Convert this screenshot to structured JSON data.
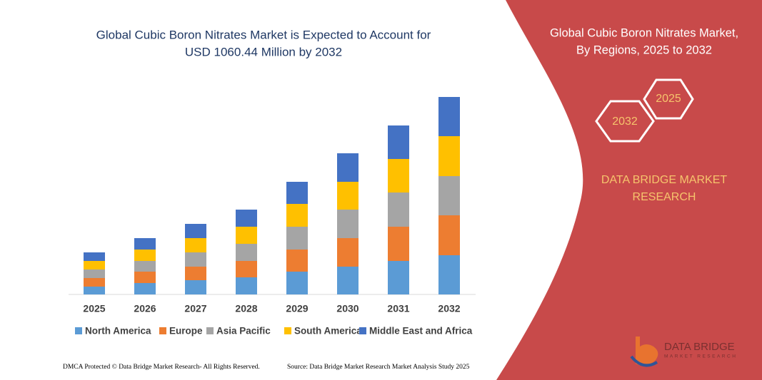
{
  "chart_data": {
    "type": "stacked_bar",
    "title_lines": [
      "Global Cubic Boron Nitrates Market is Expected to Account for",
      "USD 1060.44 Million by 2032"
    ],
    "categories": [
      "2025",
      "2026",
      "2027",
      "2028",
      "2029",
      "2030",
      "2031",
      "2032"
    ],
    "series": [
      {
        "name": "North America",
        "color": "#5b9bd5",
        "values": [
          11,
          16,
          20,
          24,
          32,
          39,
          47,
          55
        ]
      },
      {
        "name": "Europe",
        "color": "#ed7d31",
        "values": [
          12,
          16,
          19,
          23,
          31,
          40,
          48,
          56
        ]
      },
      {
        "name": "Asia Pacific",
        "color": "#a5a5a5",
        "values": [
          12,
          15,
          20,
          24,
          32,
          40,
          48,
          55
        ]
      },
      {
        "name": "South America",
        "color": "#ffc000",
        "values": [
          12,
          16,
          20,
          24,
          32,
          39,
          47,
          56
        ]
      },
      {
        "name": "Middle East and Africa",
        "color": "#4472c4",
        "values": [
          12,
          16,
          20,
          24,
          31,
          40,
          47,
          55
        ]
      }
    ],
    "ylim": [
      0,
      290
    ],
    "grid": false,
    "legend": "bottom"
  },
  "panel": {
    "title_lines": [
      "Global Cubic Boron Nitrates Market,",
      "By Regions, 2025 to 2032"
    ],
    "hex_labels": [
      "2025",
      "2032"
    ],
    "brand_lines": [
      "DATA BRIDGE MARKET",
      "RESEARCH"
    ],
    "logo_name": "DATA BRIDGE",
    "logo_sub": "MARKET RESEARCH"
  },
  "footer": {
    "left": "DMCA Protected © Data Bridge Market Research- All Rights Reserved.",
    "right": "Source: Data Bridge Market Research  Market Analysis Study 2025"
  }
}
